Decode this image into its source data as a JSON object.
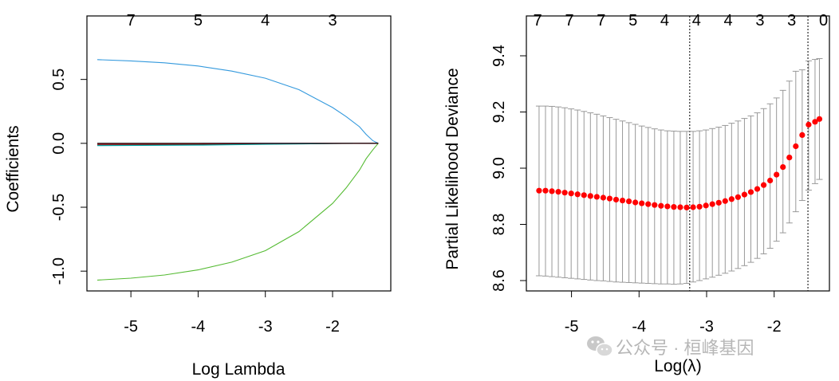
{
  "watermark": {
    "text": "公众号 · 桓峰基因",
    "icon": "wechat-icon",
    "color": "#c0c0c0"
  },
  "chart_data": [
    {
      "type": "line",
      "xlabel": "Log Lambda",
      "ylabel": "Coefficients",
      "xlim": [
        -5.5,
        -1.3
      ],
      "ylim": [
        -1.08,
        0.66
      ],
      "x_ticks": [
        "-5",
        "-4",
        "-3",
        "-2"
      ],
      "x_tick_values": [
        -5,
        -4,
        -3,
        -2
      ],
      "y_ticks": [
        "-1.0",
        "-0.5",
        "0.0",
        "0.5"
      ],
      "y_tick_values": [
        -1.0,
        -0.5,
        0.0,
        0.5
      ],
      "top_axis": {
        "labels": [
          "7",
          "5",
          "4",
          "3"
        ],
        "values": [
          -5,
          -4,
          -3,
          -2
        ]
      },
      "series": [
        {
          "color": "#3399dd",
          "x": [
            -5.5,
            -5.0,
            -4.5,
            -4.0,
            -3.5,
            -3.0,
            -2.5,
            -2.0,
            -1.8,
            -1.6,
            -1.5,
            -1.4,
            -1.32
          ],
          "y": [
            0.655,
            0.645,
            0.63,
            0.605,
            0.565,
            0.51,
            0.42,
            0.28,
            0.21,
            0.13,
            0.07,
            0.02,
            0.0
          ]
        },
        {
          "color": "#55bb33",
          "x": [
            -5.5,
            -5.0,
            -4.5,
            -4.0,
            -3.5,
            -3.0,
            -2.5,
            -2.0,
            -1.8,
            -1.6,
            -1.5,
            -1.4,
            -1.32
          ],
          "y": [
            -1.07,
            -1.055,
            -1.03,
            -0.99,
            -0.93,
            -0.84,
            -0.69,
            -0.47,
            -0.35,
            -0.21,
            -0.12,
            -0.05,
            0.0
          ]
        },
        {
          "color": "#cc33cc",
          "x": [
            -5.5,
            -4.0,
            -3.0,
            -2.0,
            -1.32
          ],
          "y": [
            -0.002,
            -0.001,
            0.0,
            0.0,
            0.0
          ]
        },
        {
          "color": "#222222",
          "x": [
            -5.5,
            -4.0,
            -3.0,
            -2.0,
            -1.32
          ],
          "y": [
            -0.012,
            -0.009,
            -0.005,
            -0.002,
            0.0
          ]
        },
        {
          "color": "#00aaaa",
          "x": [
            -5.5,
            -4.0,
            -3.0,
            -2.0,
            -1.7
          ],
          "y": [
            -0.018,
            -0.014,
            -0.008,
            -0.002,
            0.0
          ]
        },
        {
          "color": "#dd2222",
          "x": [
            -5.5,
            -4.0,
            -3.0,
            -2.0,
            -1.32
          ],
          "y": [
            -0.006,
            -0.004,
            -0.002,
            0.0,
            0.0
          ]
        },
        {
          "color": "#000000",
          "x": [
            -5.5,
            -1.32
          ],
          "y": [
            0.0,
            0.0
          ]
        }
      ]
    },
    {
      "type": "scatter",
      "xlabel": "Log(λ)",
      "ylabel": "Partial Likelihood Deviance",
      "xlim": [
        -5.55,
        -1.3
      ],
      "ylim": [
        8.6,
        9.4
      ],
      "x_ticks": [
        "-5",
        "-4",
        "-3",
        "-2"
      ],
      "x_tick_values": [
        -5,
        -4,
        -3,
        -2
      ],
      "y_ticks": [
        "8.6",
        "8.8",
        "9.0",
        "9.2",
        "9.4"
      ],
      "y_tick_values": [
        8.6,
        8.8,
        9.0,
        9.2,
        9.4
      ],
      "top_axis": {
        "labels": [
          "7",
          "7",
          "7",
          "5",
          "4",
          "4",
          "4",
          "3",
          "3",
          "0"
        ],
        "values": [
          -5.5,
          -5.03,
          -4.56,
          -4.09,
          -3.62,
          -3.15,
          -2.68,
          -2.21,
          -1.74,
          -1.27
        ]
      },
      "vlines": [
        -3.25,
        -1.5
      ],
      "point_color": "#ff0000",
      "error_bar_color": "#999999",
      "x": [
        -5.48,
        -5.385,
        -5.29,
        -5.195,
        -5.1,
        -5.005,
        -4.91,
        -4.815,
        -4.72,
        -4.625,
        -4.53,
        -4.435,
        -4.34,
        -4.245,
        -4.15,
        -4.055,
        -3.96,
        -3.865,
        -3.77,
        -3.675,
        -3.58,
        -3.485,
        -3.39,
        -3.295,
        -3.2,
        -3.105,
        -3.01,
        -2.915,
        -2.82,
        -2.725,
        -2.63,
        -2.535,
        -2.44,
        -2.345,
        -2.25,
        -2.155,
        -2.06,
        -1.965,
        -1.87,
        -1.775,
        -1.68,
        -1.585,
        -1.49,
        -1.395,
        -1.33
      ],
      "y": [
        8.92,
        8.92,
        8.918,
        8.916,
        8.913,
        8.91,
        8.907,
        8.904,
        8.901,
        8.898,
        8.895,
        8.892,
        8.888,
        8.885,
        8.882,
        8.878,
        8.875,
        8.872,
        8.869,
        8.866,
        8.864,
        8.862,
        8.861,
        8.86,
        8.861,
        8.863,
        8.867,
        8.872,
        8.877,
        8.883,
        8.89,
        8.897,
        8.906,
        8.915,
        8.926,
        8.94,
        8.956,
        8.977,
        9.004,
        9.038,
        9.078,
        9.118,
        9.155,
        9.165,
        9.175
      ],
      "lower": [
        8.617,
        8.616,
        8.614,
        8.612,
        8.61,
        8.608,
        8.606,
        8.604,
        8.602,
        8.6,
        8.599,
        8.597,
        8.595,
        8.594,
        8.593,
        8.592,
        8.591,
        8.59,
        8.589,
        8.588,
        8.588,
        8.587,
        8.588,
        8.59,
        8.595,
        8.6,
        8.606,
        8.612,
        8.619,
        8.626,
        8.634,
        8.643,
        8.653,
        8.665,
        8.679,
        8.695,
        8.715,
        8.74,
        8.77,
        8.805,
        8.845,
        8.885,
        8.922,
        8.945,
        8.96
      ],
      "upper": [
        9.221,
        9.221,
        9.22,
        9.218,
        9.215,
        9.211,
        9.207,
        9.202,
        9.197,
        9.192,
        9.186,
        9.18,
        9.174,
        9.168,
        9.162,
        9.156,
        9.15,
        9.145,
        9.14,
        9.136,
        9.133,
        9.132,
        9.131,
        9.131,
        9.131,
        9.133,
        9.136,
        9.141,
        9.146,
        9.152,
        9.16,
        9.168,
        9.177,
        9.186,
        9.197,
        9.212,
        9.229,
        9.25,
        9.277,
        9.31,
        9.345,
        9.35,
        9.382,
        9.387,
        9.39
      ]
    }
  ]
}
